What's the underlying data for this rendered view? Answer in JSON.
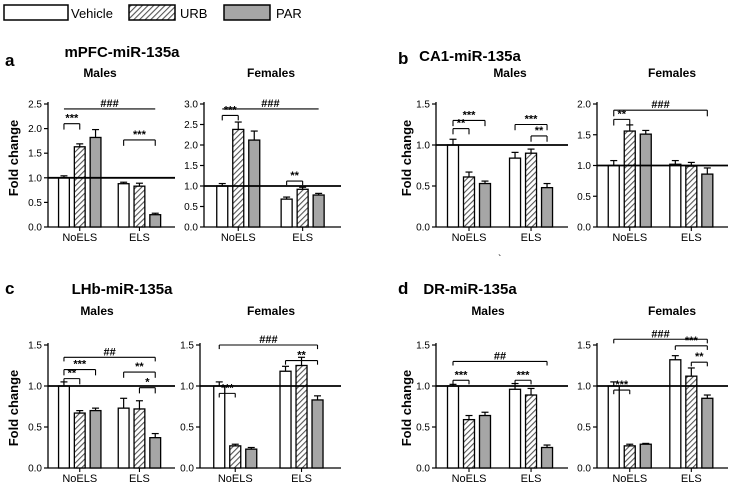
{
  "legend": [
    {
      "label": "Vehicle",
      "fill": "white"
    },
    {
      "label": "URB",
      "fill": "hatch"
    },
    {
      "label": "PAR",
      "fill": "gray"
    }
  ],
  "colors": {
    "vehicle": "#ffffff",
    "urb_hatch": "#555555",
    "par": "#a6a6a6",
    "axis": "#000000"
  },
  "stray_mark": "`",
  "chart_data": [
    {
      "type": "bar",
      "letter": "a",
      "title": "mPFC-miR-135a",
      "ylabel": "Fold change",
      "panels": [
        {
          "sex": "Males",
          "ylim": [
            0,
            2.5
          ],
          "ticks": [
            "0.0",
            "0.5",
            "1.0",
            "1.5",
            "2.0",
            "2.5"
          ],
          "tickvals": [
            0,
            0.5,
            1,
            1.5,
            2,
            2.5
          ],
          "categories": [
            "NoELS",
            "ELS"
          ],
          "series": [
            {
              "name": "Vehicle",
              "values": [
                1.0,
                0.88
              ],
              "errors": [
                0.04,
                0.03
              ]
            },
            {
              "name": "URB",
              "values": [
                1.63,
                0.83
              ],
              "errors": [
                0.06,
                0.06
              ]
            },
            {
              "name": "PAR",
              "values": [
                1.82,
                0.25
              ],
              "errors": [
                0.16,
                0.03
              ]
            }
          ],
          "brackets": [
            {
              "label": "***",
              "from": [
                0,
                0
              ],
              "to": [
                0,
                1
              ],
              "y": 2.1,
              "drop": 0.12
            },
            {
              "label": "###",
              "from": [
                0,
                0
              ],
              "to": [
                1,
                2
              ],
              "y": 2.4,
              "drop": 0
            },
            {
              "label": "***",
              "from": [
                1,
                0
              ],
              "to": [
                1,
                2
              ],
              "y": 1.77,
              "drop": 0.12
            }
          ]
        },
        {
          "sex": "Females",
          "ylim": [
            0,
            3.0
          ],
          "ticks": [
            "0.0",
            "0.5",
            "1.0",
            "1.5",
            "2.0",
            "2.5",
            "3.0"
          ],
          "tickvals": [
            0,
            0.5,
            1,
            1.5,
            2,
            2.5,
            3
          ],
          "categories": [
            "NoELS",
            "ELS"
          ],
          "series": [
            {
              "name": "Vehicle",
              "values": [
                1.0,
                0.68
              ],
              "errors": [
                0.06,
                0.05
              ]
            },
            {
              "name": "URB",
              "values": [
                2.38,
                0.92
              ],
              "errors": [
                0.18,
                0.05
              ]
            },
            {
              "name": "PAR",
              "values": [
                2.12,
                0.78
              ],
              "errors": [
                0.22,
                0.04
              ]
            }
          ],
          "brackets": [
            {
              "label": "***",
              "from": [
                0,
                0
              ],
              "to": [
                0,
                1
              ],
              "y": 2.72,
              "drop": 0.12
            },
            {
              "label": "###",
              "from": [
                0,
                0
              ],
              "to": [
                1,
                2
              ],
              "y": 2.88,
              "drop": 0
            },
            {
              "label": "**",
              "from": [
                1,
                0
              ],
              "to": [
                1,
                1
              ],
              "y": 1.12,
              "drop": 0.1
            }
          ]
        }
      ]
    },
    {
      "type": "bar",
      "letter": "b",
      "title": "CA1-miR-135a",
      "ylabel": "Fold change",
      "panels": [
        {
          "sex": "Males",
          "ylim": [
            0,
            1.5
          ],
          "ticks": [
            "0.0",
            "0.5",
            "1.0",
            "1.5"
          ],
          "tickvals": [
            0,
            0.5,
            1,
            1.5
          ],
          "categories": [
            "NoELS",
            "ELS"
          ],
          "series": [
            {
              "name": "Vehicle",
              "values": [
                1.0,
                0.84
              ],
              "errors": [
                0.07,
                0.07
              ]
            },
            {
              "name": "URB",
              "values": [
                0.61,
                0.9
              ],
              "errors": [
                0.06,
                0.05
              ]
            },
            {
              "name": "PAR",
              "values": [
                0.53,
                0.48
              ],
              "errors": [
                0.03,
                0.05
              ]
            }
          ],
          "brackets": [
            {
              "label": "***",
              "from": [
                0,
                0
              ],
              "to": [
                0,
                2
              ],
              "y": 1.3,
              "drop": 0.07
            },
            {
              "label": "**",
              "from": [
                0,
                0
              ],
              "to": [
                0,
                1
              ],
              "y": 1.2,
              "drop": 0.07
            },
            {
              "label": "***",
              "from": [
                1,
                0
              ],
              "to": [
                1,
                2
              ],
              "y": 1.25,
              "drop": 0.07
            },
            {
              "label": "**",
              "from": [
                1,
                1
              ],
              "to": [
                1,
                2
              ],
              "y": 1.11,
              "drop": 0.07
            }
          ]
        },
        {
          "sex": "Females",
          "ylim": [
            0,
            2.0
          ],
          "ticks": [
            "0.0",
            "0.5",
            "1.0",
            "1.5",
            "2.0"
          ],
          "tickvals": [
            0,
            0.5,
            1,
            1.5,
            2
          ],
          "categories": [
            "NoELS",
            "ELS"
          ],
          "series": [
            {
              "name": "Vehicle",
              "values": [
                1.0,
                1.02
              ],
              "errors": [
                0.08,
                0.06
              ]
            },
            {
              "name": "URB",
              "values": [
                1.56,
                0.99
              ],
              "errors": [
                0.1,
                0.06
              ]
            },
            {
              "name": "PAR",
              "values": [
                1.51,
                0.86
              ],
              "errors": [
                0.06,
                0.1
              ]
            }
          ],
          "brackets": [
            {
              "label": "**",
              "from": [
                0,
                0
              ],
              "to": [
                0,
                1
              ],
              "y": 1.75,
              "drop": 0.1
            },
            {
              "label": "###",
              "from": [
                0,
                0
              ],
              "to": [
                1,
                2
              ],
              "y": 1.9,
              "drop": 0.1
            }
          ]
        }
      ]
    },
    {
      "type": "bar",
      "letter": "c",
      "title": "LHb-miR-135a",
      "ylabel": "Fold change",
      "panels": [
        {
          "sex": "Males",
          "ylim": [
            0,
            1.5
          ],
          "ticks": [
            "0.0",
            "0.5",
            "1.0",
            "1.5"
          ],
          "tickvals": [
            0,
            0.5,
            1,
            1.5
          ],
          "categories": [
            "NoELS",
            "ELS"
          ],
          "series": [
            {
              "name": "Vehicle",
              "values": [
                1.0,
                0.73
              ],
              "errors": [
                0.05,
                0.12
              ]
            },
            {
              "name": "URB",
              "values": [
                0.67,
                0.72
              ],
              "errors": [
                0.03,
                0.1
              ]
            },
            {
              "name": "PAR",
              "values": [
                0.7,
                0.37
              ],
              "errors": [
                0.03,
                0.05
              ]
            }
          ],
          "brackets": [
            {
              "label": "##",
              "from": [
                0,
                0
              ],
              "to": [
                1,
                2
              ],
              "y": 1.35,
              "drop": 0.05
            },
            {
              "label": "***",
              "from": [
                0,
                0
              ],
              "to": [
                0,
                2
              ],
              "y": 1.2,
              "drop": 0.07
            },
            {
              "label": "**",
              "from": [
                0,
                0
              ],
              "to": [
                0,
                1
              ],
              "y": 1.09,
              "drop": 0.07
            },
            {
              "label": "**",
              "from": [
                1,
                0
              ],
              "to": [
                1,
                2
              ],
              "y": 1.17,
              "drop": 0.07
            },
            {
              "label": "*",
              "from": [
                1,
                1
              ],
              "to": [
                1,
                2
              ],
              "y": 0.98,
              "drop": 0.07
            }
          ]
        },
        {
          "sex": "Females",
          "ylim": [
            0,
            1.5
          ],
          "ticks": [
            "0.0",
            "0.5",
            "1.0",
            "1.5"
          ],
          "tickvals": [
            0,
            0.5,
            1,
            1.5
          ],
          "categories": [
            "NoELS",
            "ELS"
          ],
          "series": [
            {
              "name": "Vehicle",
              "values": [
                1.0,
                1.18
              ],
              "errors": [
                0.05,
                0.06
              ]
            },
            {
              "name": "URB",
              "values": [
                0.27,
                1.25
              ],
              "errors": [
                0.02,
                0.1
              ]
            },
            {
              "name": "PAR",
              "values": [
                0.23,
                0.83
              ],
              "errors": [
                0.02,
                0.05
              ]
            }
          ],
          "brackets": [
            {
              "label": "###",
              "from": [
                0,
                0
              ],
              "to": [
                1,
                2
              ],
              "y": 1.5,
              "drop": 0.05
            },
            {
              "label": "***",
              "from": [
                0,
                0
              ],
              "to": [
                0,
                1
              ],
              "y": 0.91,
              "drop": 0.05
            },
            {
              "label": "**",
              "from": [
                1,
                0
              ],
              "to": [
                1,
                2
              ],
              "y": 1.31,
              "drop": 0.05
            }
          ]
        }
      ]
    },
    {
      "type": "bar",
      "letter": "d",
      "title": "DR-miR-135a",
      "ylabel": "Fold change",
      "panels": [
        {
          "sex": "Males",
          "ylim": [
            0,
            1.5
          ],
          "ticks": [
            "0.0",
            "0.5",
            "1.0",
            "1.5"
          ],
          "tickvals": [
            0,
            0.5,
            1,
            1.5
          ],
          "categories": [
            "NoELS",
            "ELS"
          ],
          "series": [
            {
              "name": "Vehicle",
              "values": [
                1.0,
                0.96
              ],
              "errors": [
                0.02,
                0.07
              ]
            },
            {
              "name": "URB",
              "values": [
                0.59,
                0.89
              ],
              "errors": [
                0.05,
                0.08
              ]
            },
            {
              "name": "PAR",
              "values": [
                0.64,
                0.25
              ],
              "errors": [
                0.04,
                0.03
              ]
            }
          ],
          "brackets": [
            {
              "label": "##",
              "from": [
                0,
                0
              ],
              "to": [
                1,
                2
              ],
              "y": 1.3,
              "drop": 0.05
            },
            {
              "label": "***",
              "from": [
                0,
                0
              ],
              "to": [
                0,
                1
              ],
              "y": 1.07,
              "drop": 0.05
            },
            {
              "label": "***",
              "from": [
                1,
                0
              ],
              "to": [
                1,
                1
              ],
              "y": 1.07,
              "drop": 0.05
            }
          ]
        },
        {
          "sex": "Females",
          "ylim": [
            0,
            1.5
          ],
          "ticks": [
            "0.0",
            "0.5",
            "1.0",
            "1.5"
          ],
          "tickvals": [
            0,
            0.5,
            1,
            1.5
          ],
          "categories": [
            "NoELS",
            "ELS"
          ],
          "series": [
            {
              "name": "Vehicle",
              "values": [
                1.0,
                1.32
              ],
              "errors": [
                0.05,
                0.05
              ]
            },
            {
              "name": "URB",
              "values": [
                0.27,
                1.12
              ],
              "errors": [
                0.02,
                0.1
              ]
            },
            {
              "name": "PAR",
              "values": [
                0.29,
                0.85
              ],
              "errors": [
                0.01,
                0.04
              ]
            }
          ],
          "brackets": [
            {
              "label": "###",
              "from": [
                0,
                0
              ],
              "to": [
                1,
                2
              ],
              "y": 1.57,
              "drop": 0.05
            },
            {
              "label": "***",
              "from": [
                0,
                0
              ],
              "to": [
                0,
                1
              ],
              "y": 0.95,
              "drop": 0.05
            },
            {
              "label": "***",
              "from": [
                1,
                0
              ],
              "to": [
                1,
                2
              ],
              "y": 1.49,
              "drop": 0.05
            },
            {
              "label": "**",
              "from": [
                1,
                1
              ],
              "to": [
                1,
                2
              ],
              "y": 1.29,
              "drop": 0.05
            }
          ]
        }
      ]
    }
  ]
}
